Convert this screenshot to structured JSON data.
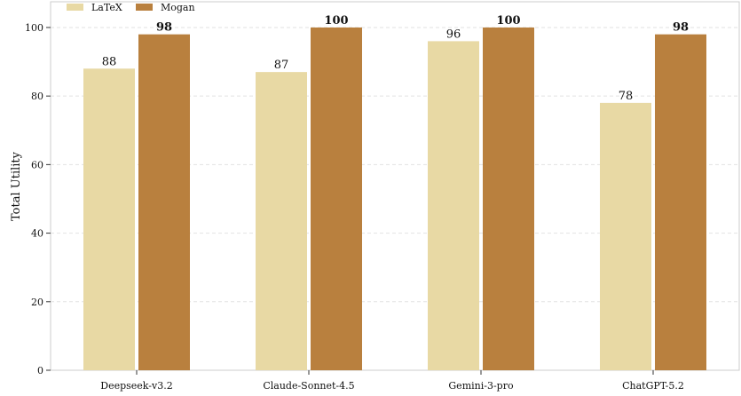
{
  "chart_data": {
    "type": "bar",
    "categories": [
      "Deepseek-v3.2",
      "Claude-Sonnet-4.5",
      "Gemini-3-pro",
      "ChatGPT-5.2"
    ],
    "series": [
      {
        "name": "LaTeX",
        "values": [
          88,
          87,
          96,
          78
        ],
        "color": "#e8d9a4",
        "bold_labels": false
      },
      {
        "name": "Mogan",
        "values": [
          98,
          100,
          100,
          98
        ],
        "color": "#b9803e",
        "bold_labels": true
      }
    ],
    "data_labels": true,
    "ylabel": "Total Utility",
    "xlabel": "",
    "ylim": [
      0,
      107.5
    ],
    "yticks": [
      0,
      20,
      40,
      60,
      80,
      100
    ],
    "grid": "horizontal dashed",
    "legend_position": "top-left"
  }
}
